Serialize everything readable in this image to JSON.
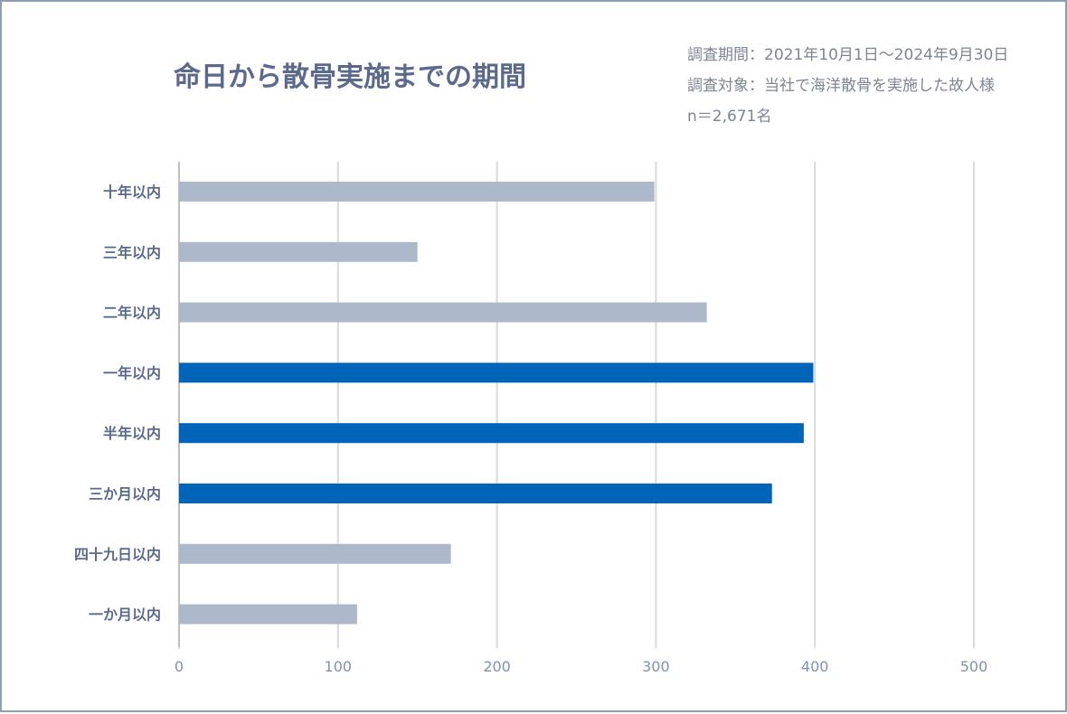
{
  "chart_data": {
    "type": "bar",
    "orientation": "horizontal",
    "title": "命日から散骨実施までの期間",
    "notes": [
      "調査期間：2021年10月1日～2024年9月30日",
      "調査対象：当社で海洋散骨を実施した故人様",
      "n＝2,671名"
    ],
    "categories": [
      "十年以内",
      "三年以内",
      "二年以内",
      "一年以内",
      "半年以内",
      "三か月以内",
      "四十九日以内",
      "一か月以内"
    ],
    "values": [
      299,
      150,
      332,
      399,
      393,
      373,
      171,
      112
    ],
    "highlight": [
      false,
      false,
      false,
      true,
      true,
      true,
      false,
      false
    ],
    "xlim": [
      0,
      500
    ],
    "xticks": [
      0,
      100,
      200,
      300,
      400,
      500
    ],
    "grid": true,
    "colors": {
      "default_bar": "#adb9ca",
      "highlight_bar": "#0064b8",
      "gridline": "#d9d9d9",
      "axis_line": "#bfbfbf",
      "title": "#5b6a8c",
      "border": "#8c9db5"
    }
  }
}
